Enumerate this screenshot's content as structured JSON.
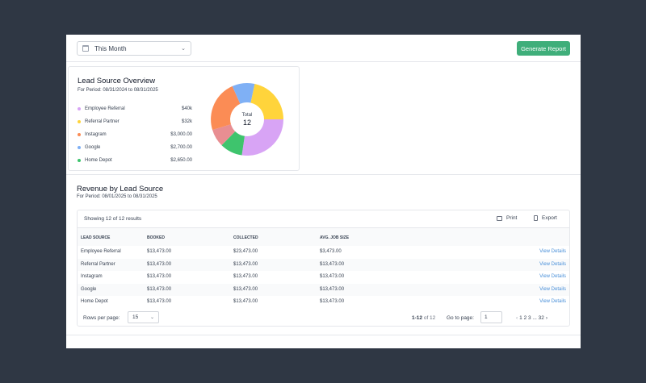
{
  "toolbar": {
    "period_select": "This Month",
    "generate_button": "Generate Report"
  },
  "overview": {
    "title": "Lead Source Overview",
    "period": "For Period: 08/31/2024 to 08/31/2025",
    "legend": [
      {
        "label": "Employee Referral",
        "value": "$40k",
        "color": "#d8a4f5"
      },
      {
        "label": "Referral Partner",
        "value": "$32k",
        "color": "#ffd43b"
      },
      {
        "label": "Instagram",
        "value": "$3,000.00",
        "color": "#fb8c55"
      },
      {
        "label": "Google",
        "value": "$2,700.00",
        "color": "#7fb0f5"
      },
      {
        "label": "Home Depot",
        "value": "$2,650.00",
        "color": "#3ec46d"
      }
    ],
    "donut": {
      "center_label": "Total",
      "center_value": "12"
    }
  },
  "revenue": {
    "title": "Revenue by Lead Source",
    "period": "For Period: 08/01/2025 to 08/31/2025",
    "showing": "Showing 12 of 12 results",
    "print_label": "Print",
    "export_label": "Export",
    "columns": [
      "LEAD SOURCE",
      "BOOKED",
      "COLLECTED",
      "AVG. JOB SIZE"
    ],
    "rows": [
      {
        "source": "Employee Referral",
        "booked": "$13,473.00",
        "collected": "$23,473.00",
        "avg": "$3,473.00",
        "action": "View Details"
      },
      {
        "source": "Referral Partner",
        "booked": "$13,473.00",
        "collected": "$13,473.00",
        "avg": "$13,473.00",
        "action": "View Details"
      },
      {
        "source": "Instagram",
        "booked": "$13,473.00",
        "collected": "$13,473.00",
        "avg": "$13,473.00",
        "action": "View Details"
      },
      {
        "source": "Google",
        "booked": "$13,473.00",
        "collected": "$13,473.00",
        "avg": "$13,473.00",
        "action": "View Details"
      },
      {
        "source": "Home Depot",
        "booked": "$13,473.00",
        "collected": "$13,473.00",
        "avg": "$13,473.00",
        "action": "View Details"
      }
    ],
    "footer": {
      "rows_per_page_label": "Rows per page:",
      "rows_per_page_value": "15",
      "range_bold": "1-12",
      "range_rest": "of 12",
      "goto_label": "Go to page:",
      "goto_value": "1",
      "pages": "1 2 3 ... 32"
    }
  }
}
